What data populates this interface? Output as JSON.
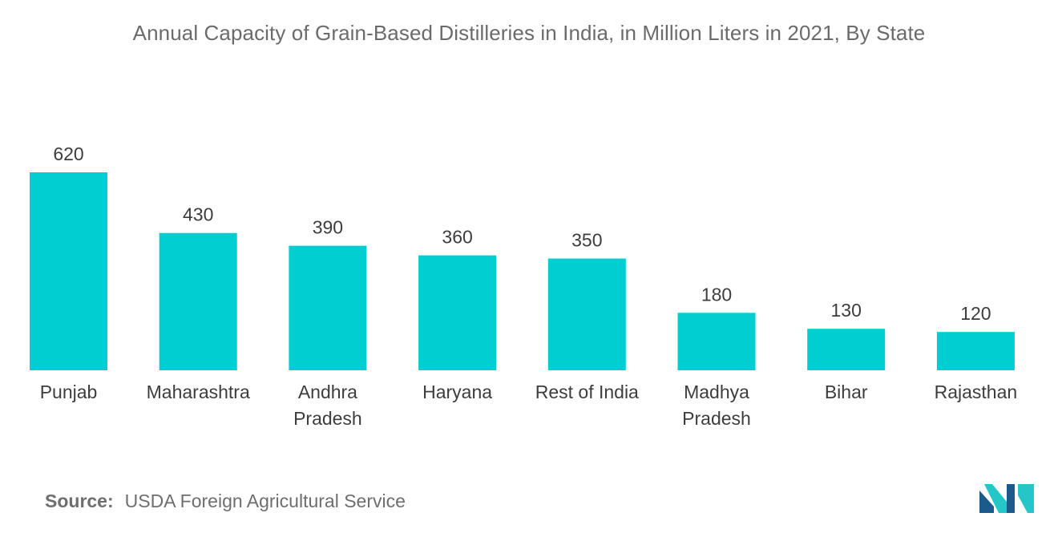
{
  "chart_data": {
    "type": "bar",
    "title": "Annual Capacity of Grain-Based Distilleries in India, in Million Liters in 2021, By State",
    "categories": [
      "Punjab",
      "Maharashtra",
      "Andhra Pradesh",
      "Haryana",
      "Rest of India",
      "Madhya Pradesh",
      "Bihar",
      "Rajasthan"
    ],
    "category_lines": [
      [
        "Punjab"
      ],
      [
        "Maharashtra"
      ],
      [
        "Andhra",
        "Pradesh"
      ],
      [
        "Haryana"
      ],
      [
        "Rest of India"
      ],
      [
        "Madhya",
        "Pradesh"
      ],
      [
        "Bihar"
      ],
      [
        "Rajasthan"
      ]
    ],
    "values": [
      620,
      430,
      390,
      360,
      350,
      180,
      130,
      120
    ],
    "data_labels": [
      "620",
      "430",
      "390",
      "360",
      "350",
      "180",
      "130",
      "120"
    ],
    "xlabel": "",
    "ylabel": "",
    "ylim": [
      0,
      620
    ],
    "grid": false,
    "bar_color": "#00ced1"
  },
  "source": {
    "label": "Source:",
    "text": "USDA Foreign Agricultural Service"
  },
  "logo": {
    "icon": "mordor-intelligence-logo-icon",
    "color_dark": "#1b5a8a",
    "color_light": "#24c6c8"
  }
}
